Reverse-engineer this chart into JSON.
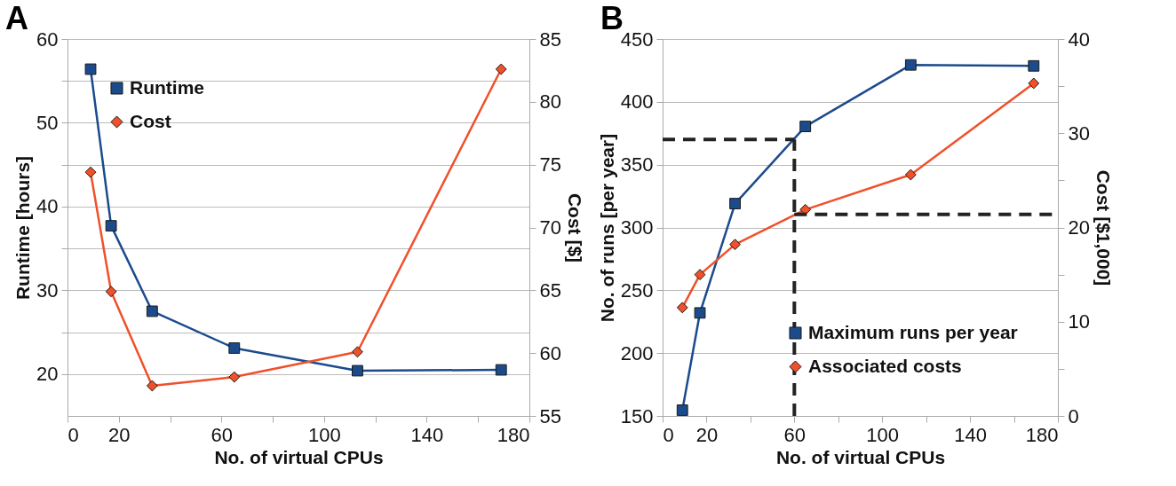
{
  "chart_data": [
    {
      "type": "line",
      "title": "A",
      "xlabel": "No. of virtual CPUs",
      "ylabel": "Runtime [hours]",
      "y2label": "Cost [$]",
      "x": [
        9,
        17,
        33,
        65,
        113,
        169
      ],
      "xlim": [
        0,
        180
      ],
      "xticks": [
        0,
        20,
        {
          "value": 40,
          "label": null
        },
        60,
        {
          "value": 80,
          "label": null
        },
        100,
        {
          "value": 120,
          "label": null
        },
        140,
        {
          "value": 160,
          "label": null
        },
        180
      ],
      "ylim": [
        15,
        60
      ],
      "yticks": [
        20,
        {
          "value": 25,
          "label": null
        },
        30,
        {
          "value": 35,
          "label": null
        },
        40,
        {
          "value": 45,
          "label": null
        },
        50,
        {
          "value": 55,
          "label": null
        },
        60
      ],
      "y2lim": [
        55,
        85
      ],
      "y2ticks": [
        55,
        60,
        65,
        70,
        75,
        80,
        85
      ],
      "grid": "y",
      "legend": "top left",
      "series": [
        {
          "name": "Runtime",
          "color": "#1c4b8c",
          "marker": "square",
          "values": [
            56.4,
            37.7,
            27.5,
            23.1,
            20.4,
            20.5
          ]
        },
        {
          "name": "Cost",
          "color": "#f0502a",
          "marker": "diamond",
          "axis": "y2",
          "values": [
            74.4,
            64.9,
            57.4,
            58.1,
            60.1,
            82.6
          ]
        }
      ]
    },
    {
      "type": "line",
      "title": "B",
      "xlabel": "No. of virtual CPUs",
      "ylabel": "No. of runs [per year]",
      "y2label": "Cost [$1,000]",
      "x": [
        9,
        17,
        33,
        65,
        113,
        169
      ],
      "xlim": [
        0,
        180
      ],
      "xticks": [
        0,
        20,
        {
          "value": 40,
          "label": null
        },
        60,
        {
          "value": 80,
          "label": null
        },
        100,
        {
          "value": 120,
          "label": null
        },
        140,
        {
          "value": 160,
          "label": null
        },
        180
      ],
      "ylim": [
        150,
        450
      ],
      "yticks": [
        150,
        200,
        250,
        300,
        350,
        400,
        450
      ],
      "y2lim": [
        0,
        40
      ],
      "y2ticks": [
        0,
        {
          "value": 5,
          "label": null
        },
        10,
        {
          "value": 15,
          "label": null
        },
        20,
        {
          "value": 25,
          "label": null
        },
        30,
        {
          "value": 35,
          "label": null
        },
        40
      ],
      "grid": "y",
      "legend": "bottom right",
      "series": [
        {
          "name": "Maximum runs per year",
          "color": "#1c4b8c",
          "marker": "square",
          "values": [
            154.6,
            232,
            319,
            380.4,
            429.4,
            428.6
          ]
        },
        {
          "name": "Associated costs",
          "color": "#f0502a",
          "marker": "diamond",
          "axis": "y2",
          "values": [
            11.5,
            15.0,
            18.2,
            21.9,
            25.6,
            35.3
          ]
        },
        {
          "color": "#222222",
          "marker": "none",
          "line_style": "dashed",
          "x": [
            0,
            60
          ],
          "values": [
            370,
            370
          ]
        },
        {
          "color": "#222222",
          "marker": "none",
          "line_style": "dashed",
          "x": [
            60,
            60
          ],
          "values": [
            150,
            370
          ]
        },
        {
          "color": "#222222",
          "marker": "none",
          "line_style": "dashed",
          "axis": "y2",
          "x": [
            60,
            180
          ],
          "values": [
            21.4,
            21.4
          ]
        }
      ]
    }
  ]
}
